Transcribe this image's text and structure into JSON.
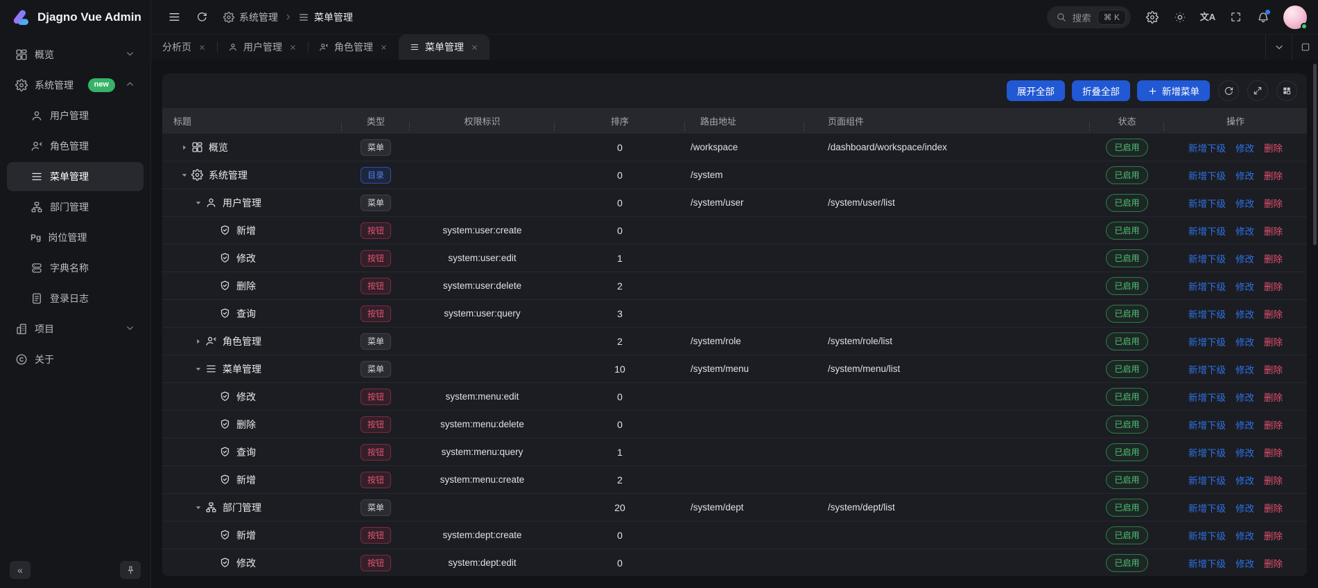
{
  "app": {
    "title": "Djagno Vue Admin"
  },
  "sidebar": {
    "items": [
      {
        "label": "概览",
        "icon": "dashboard-icon",
        "chevron": "down"
      },
      {
        "label": "系统管理",
        "icon": "gear-icon",
        "badge": "new",
        "chevron": "up",
        "expanded": true,
        "children": [
          {
            "label": "用户管理",
            "icon": "user-icon"
          },
          {
            "label": "角色管理",
            "icon": "role-icon"
          },
          {
            "label": "菜单管理",
            "icon": "menu-icon",
            "active": true
          },
          {
            "label": "部门管理",
            "icon": "dept-icon"
          },
          {
            "label": "岗位管理",
            "icon": "post-icon"
          },
          {
            "label": "字典名称",
            "icon": "dict-icon"
          },
          {
            "label": "登录日志",
            "icon": "log-icon"
          }
        ]
      },
      {
        "label": "项目",
        "icon": "project-icon",
        "chevron": "down"
      },
      {
        "label": "关于",
        "icon": "about-icon"
      }
    ],
    "collapse_label": "«"
  },
  "header": {
    "breadcrumb": [
      {
        "icon": "gear-icon",
        "label": "系统管理"
      },
      {
        "icon": "menu-icon",
        "label": "菜单管理"
      }
    ],
    "search": {
      "placeholder": "搜索",
      "shortcut": "⌘ K"
    }
  },
  "tabs": [
    {
      "label": "分析页"
    },
    {
      "label": "用户管理",
      "icon": "user-icon"
    },
    {
      "label": "角色管理",
      "icon": "role-icon"
    },
    {
      "label": "菜单管理",
      "icon": "menu-icon",
      "active": true
    }
  ],
  "toolbar": {
    "expand_all": "展开全部",
    "collapse_all": "折叠全部",
    "add_menu": "新增菜单"
  },
  "table": {
    "columns": [
      "标题",
      "类型",
      "权限标识",
      "排序",
      "路由地址",
      "页面组件",
      "状态",
      "操作"
    ],
    "type_labels": {
      "menu": "菜单",
      "catalog": "目录",
      "button": "按钮"
    },
    "status_label": "已启用",
    "action_labels": {
      "add_child": "新增下级",
      "edit": "修改",
      "delete": "删除"
    },
    "rows": [
      {
        "title": "概览",
        "icon": "dashboard-icon",
        "level": 0,
        "arrow": "right",
        "type": "menu",
        "perm": "",
        "sort": 0,
        "route": "/workspace",
        "component": "/dashboard/workspace/index"
      },
      {
        "title": "系统管理",
        "icon": "gear-icon",
        "level": 0,
        "arrow": "down",
        "type": "catalog",
        "perm": "",
        "sort": 0,
        "route": "/system",
        "component": ""
      },
      {
        "title": "用户管理",
        "icon": "user-icon",
        "level": 1,
        "arrow": "down",
        "type": "menu",
        "perm": "",
        "sort": 0,
        "route": "/system/user",
        "component": "/system/user/list"
      },
      {
        "title": "新增",
        "icon": "shield-icon",
        "level": 2,
        "type": "button",
        "perm": "system:user:create",
        "sort": 0
      },
      {
        "title": "修改",
        "icon": "shield-icon",
        "level": 2,
        "type": "button",
        "perm": "system:user:edit",
        "sort": 1
      },
      {
        "title": "删除",
        "icon": "shield-icon",
        "level": 2,
        "type": "button",
        "perm": "system:user:delete",
        "sort": 2
      },
      {
        "title": "查询",
        "icon": "shield-icon",
        "level": 2,
        "type": "button",
        "perm": "system:user:query",
        "sort": 3
      },
      {
        "title": "角色管理",
        "icon": "role-icon",
        "level": 1,
        "arrow": "right",
        "type": "menu",
        "perm": "",
        "sort": 2,
        "route": "/system/role",
        "component": "/system/role/list"
      },
      {
        "title": "菜单管理",
        "icon": "menu-icon",
        "level": 1,
        "arrow": "down",
        "type": "menu",
        "perm": "",
        "sort": 10,
        "route": "/system/menu",
        "component": "/system/menu/list"
      },
      {
        "title": "修改",
        "icon": "shield-icon",
        "level": 2,
        "type": "button",
        "perm": "system:menu:edit",
        "sort": 0
      },
      {
        "title": "删除",
        "icon": "shield-icon",
        "level": 2,
        "type": "button",
        "perm": "system:menu:delete",
        "sort": 0
      },
      {
        "title": "查询",
        "icon": "shield-icon",
        "level": 2,
        "type": "button",
        "perm": "system:menu:query",
        "sort": 1
      },
      {
        "title": "新增",
        "icon": "shield-icon",
        "level": 2,
        "type": "button",
        "perm": "system:menu:create",
        "sort": 2
      },
      {
        "title": "部门管理",
        "icon": "dept-icon",
        "level": 1,
        "arrow": "down",
        "type": "menu",
        "perm": "",
        "sort": 20,
        "route": "/system/dept",
        "component": "/system/dept/list"
      },
      {
        "title": "新增",
        "icon": "shield-icon",
        "level": 2,
        "type": "button",
        "perm": "system:dept:create",
        "sort": 0
      },
      {
        "title": "修改",
        "icon": "shield-icon",
        "level": 2,
        "type": "button",
        "perm": "system:dept:edit",
        "sort": 0
      }
    ]
  },
  "colors": {
    "primary": "#2158d4",
    "link": "#2e71e5",
    "danger": "#e14f6e",
    "success": "#4fc571",
    "badge_new": "#36b368",
    "notification_dot": "#2f7bef"
  }
}
